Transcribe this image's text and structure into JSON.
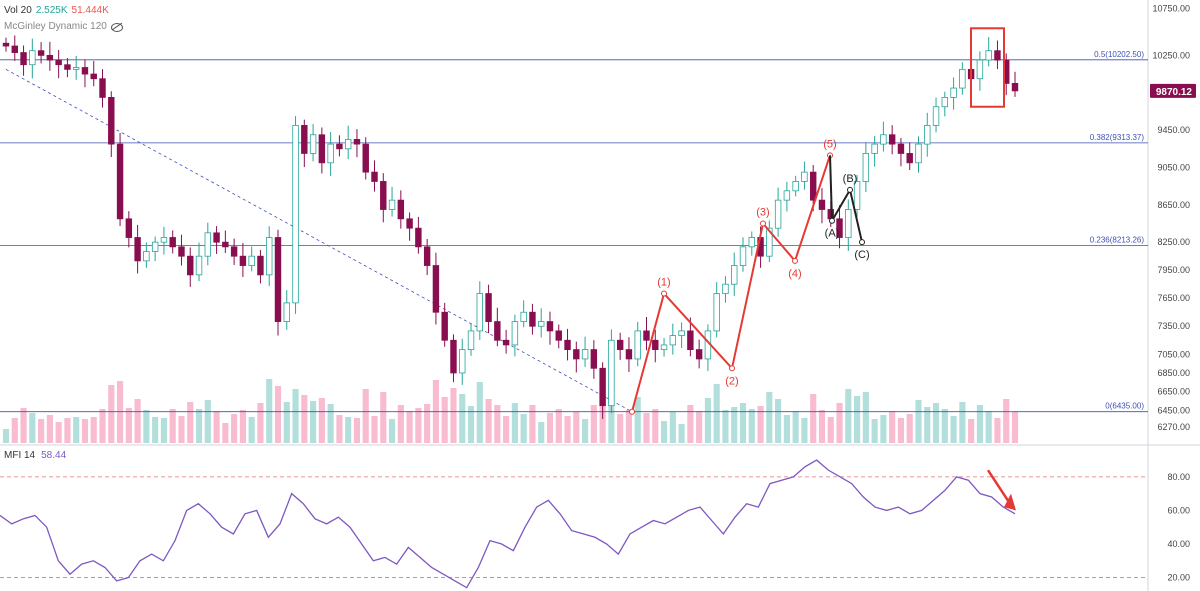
{
  "legend": {
    "volume_label": "Vol 20",
    "volume_value_1": "2.525K",
    "volume_value_2": "51.444K",
    "indicator_label": "McGinley Dynamic 120"
  },
  "mfi_legend": {
    "label": "MFI 14",
    "value": "58.44"
  },
  "colors": {
    "up": "#26a69a",
    "down": "#880e4f",
    "grid_line": "#3f51b5",
    "wave": "#e53935",
    "mfi": "#7e57c2",
    "mfi_band": "#e57373",
    "price_tag": "#880e4f",
    "vol_up": "#b2dfdb",
    "vol_down": "#f8bbd0"
  },
  "chart_data": [
    {
      "type": "candlestick",
      "title": "",
      "ylim": [
        6100,
        10800
      ],
      "yticks": [
        "10750.00",
        "10250.00",
        "9870.12",
        "9450.00",
        "9050.00",
        "8650.00",
        "8250.00",
        "7950.00",
        "7650.00",
        "7350.00",
        "7050.00",
        "6850.00",
        "6650.00",
        "6450.00",
        "6270.00"
      ],
      "ytick_values": [
        10750,
        10250,
        9870.12,
        9450,
        9050,
        8650,
        8250,
        7950,
        7650,
        7350,
        7050,
        6850,
        6650,
        6450,
        6270
      ],
      "last_price": {
        "label": "9870.12",
        "value": 9870.12
      },
      "fib_levels": [
        {
          "label": "0.5(10202.50)",
          "value": 10202.5
        },
        {
          "label": "0.382(9313.37)",
          "value": 9313.37
        },
        {
          "label": "0.236(8213.26)",
          "value": 8213.26
        },
        {
          "label": "0(6435.00)",
          "value": 6435
        }
      ],
      "trendline": {
        "from": [
          0,
          10100
        ],
        "to": [
          90,
          6435
        ]
      },
      "closes": [
        10350,
        10280,
        10150,
        10300,
        10250,
        10200,
        10150,
        10100,
        10120,
        10050,
        10000,
        9800,
        9300,
        8500,
        8300,
        8050,
        8150,
        8250,
        8300,
        8200,
        8100,
        7900,
        8100,
        8350,
        8250,
        8200,
        8100,
        8000,
        8100,
        7900,
        8300,
        7400,
        7600,
        9500,
        9200,
        9400,
        9100,
        9300,
        9250,
        9350,
        9300,
        9000,
        8900,
        8600,
        8700,
        8500,
        8400,
        8200,
        8000,
        7500,
        7200,
        6850,
        7100,
        7300,
        7700,
        7400,
        7200,
        7150,
        7400,
        7500,
        7350,
        7400,
        7300,
        7200,
        7100,
        7000,
        7100,
        6900,
        6500,
        7200,
        7100,
        7000,
        7300,
        7200,
        7100,
        7150,
        7250,
        7300,
        7100,
        7000,
        7300,
        7700,
        7800,
        8000,
        8200,
        8300,
        8100,
        8400,
        8700,
        8800,
        8900,
        9000,
        8700,
        8600,
        8500,
        8300,
        8600,
        8900,
        9200,
        9300,
        9400,
        9300,
        9200,
        9100,
        9300,
        9500,
        9700,
        9800,
        9900,
        10100,
        10000,
        10200,
        10300,
        10200,
        9950,
        9870
      ],
      "x_axis_labels": [],
      "annotations": [
        "(1)",
        "(2)",
        "(3)",
        "(4)",
        "(5)",
        "(A)",
        "(B)",
        "(C)"
      ],
      "waves": {
        "impulse": [
          [
            "",
            6435
          ],
          [
            "(1)",
            7700
          ],
          [
            "(2)",
            6900
          ],
          [
            "(3)",
            8450
          ],
          [
            "(4)",
            8050
          ],
          [
            "(5)",
            9180
          ]
        ],
        "correction": [
          [
            "(5)",
            9180
          ],
          [
            "(A)",
            8480
          ],
          [
            "(B)",
            8810
          ],
          [
            "(C)",
            8250
          ]
        ]
      }
    },
    {
      "type": "line",
      "title": "",
      "series": [
        {
          "name": "MFI 14",
          "values": [
            57,
            52,
            55,
            57,
            50,
            30,
            22,
            28,
            30,
            26,
            18,
            20,
            30,
            34,
            30,
            42,
            60,
            64,
            58,
            50,
            46,
            58,
            60,
            44,
            52,
            70,
            64,
            55,
            52,
            56,
            50,
            40,
            30,
            32,
            28,
            38,
            32,
            26,
            22,
            18,
            14,
            26,
            42,
            40,
            36,
            50,
            62,
            66,
            58,
            48,
            46,
            44,
            40,
            34,
            46,
            50,
            54,
            52,
            56,
            60,
            62,
            54,
            46,
            56,
            64,
            62,
            76,
            78,
            80,
            86,
            90,
            84,
            80,
            76,
            68,
            62,
            60,
            62,
            58,
            60,
            66,
            72,
            80,
            78,
            70,
            68,
            62,
            58
          ]
        }
      ],
      "ylim": [
        12,
        96
      ],
      "yticks": [
        "80.00",
        "60.00",
        "40.00",
        "20.00"
      ],
      "ytick_values": [
        80,
        60,
        40,
        20
      ],
      "bands": [
        80,
        20
      ],
      "legend": "top-left"
    }
  ]
}
